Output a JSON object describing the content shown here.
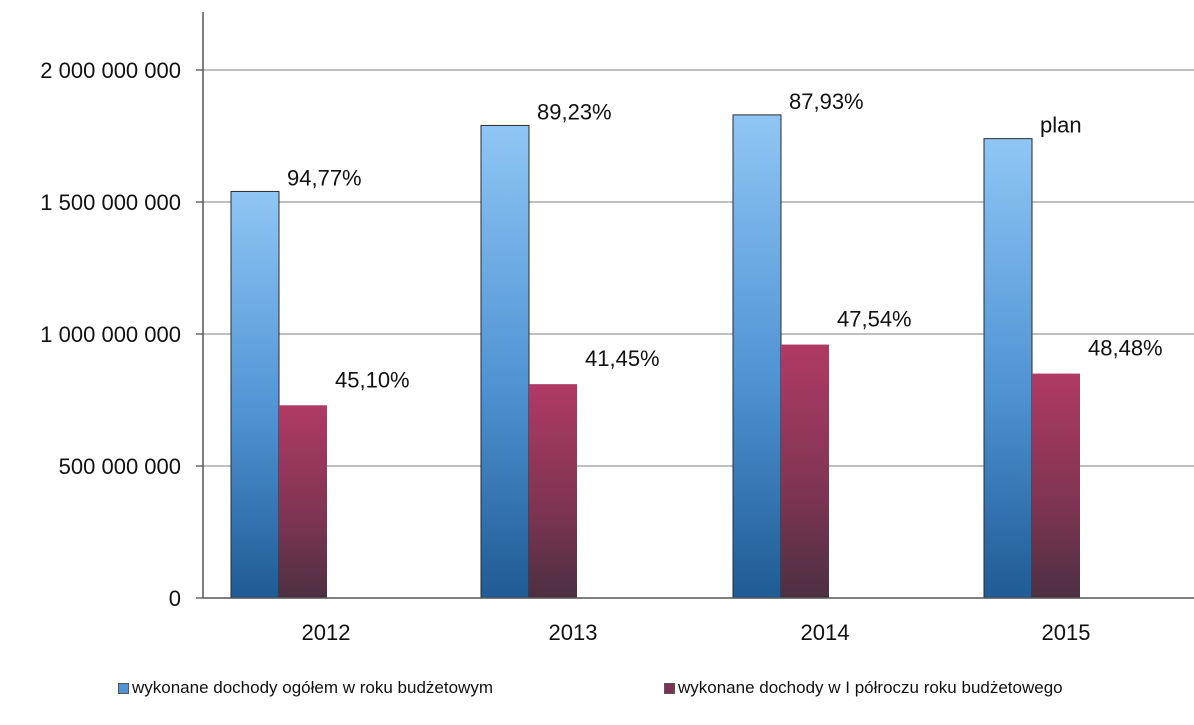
{
  "chart_data": {
    "type": "bar",
    "categories": [
      "2012",
      "2013",
      "2014",
      "2015"
    ],
    "series": [
      {
        "name": "wykonane dochody ogółem w roku budżetowym",
        "values": [
          1540000000,
          1790000000,
          1830000000,
          1740000000
        ],
        "labels": [
          "94,77%",
          "89,23%",
          "87,93%",
          "plan"
        ],
        "color_top": "#8fc6f5",
        "color_bottom": "#1f5b94"
      },
      {
        "name": "wykonane dochody w I półroczu roku budżetowego",
        "values": [
          730000000,
          810000000,
          960000000,
          850000000
        ],
        "labels": [
          "45,10%",
          "41,45%",
          "47,54%",
          "48,48%"
        ],
        "color_top": "#b03a64",
        "color_bottom": "#4b3040"
      }
    ],
    "y_ticks": [
      "0",
      "500 000 000",
      "1 000 000 000",
      "1 500 000 000",
      "2 000 000 000"
    ],
    "ylim": [
      0,
      2000000000
    ],
    "grid": true,
    "legend_position": "bottom"
  }
}
